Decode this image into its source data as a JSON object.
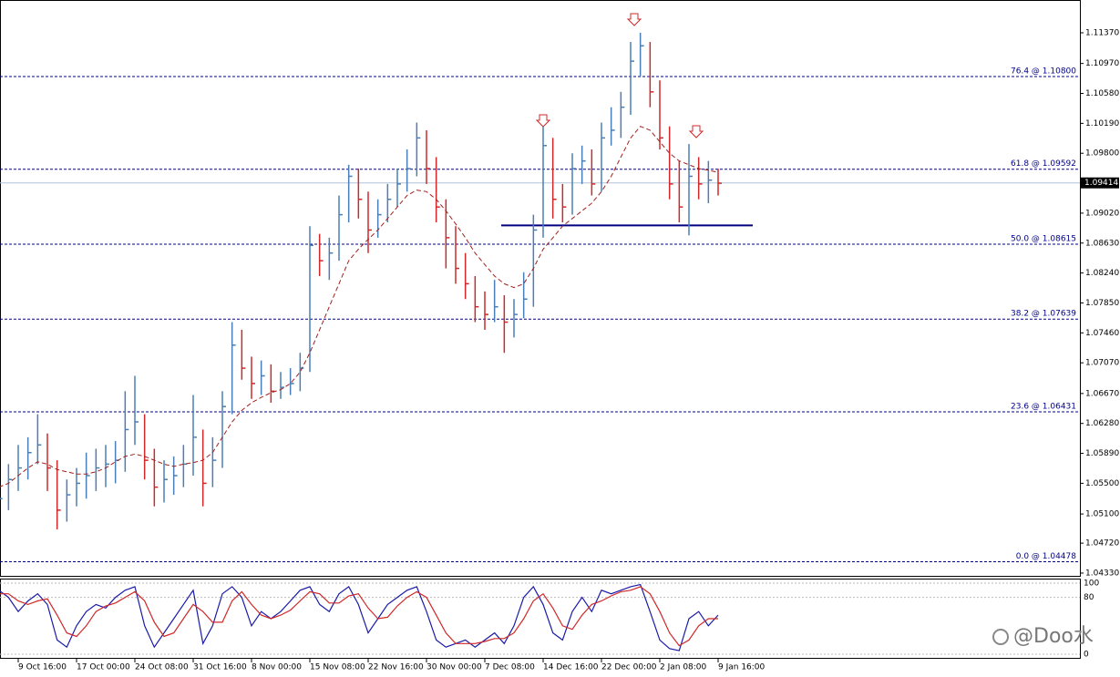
{
  "chart_data": {
    "type": "ohlc",
    "categories": [
      null,
      null,
      "9 Oct 16:00",
      null,
      null,
      null,
      null,
      null,
      "17 Oct 00:00",
      null,
      null,
      null,
      null,
      null,
      "24 Oct 08:00",
      null,
      null,
      null,
      null,
      null,
      "31 Oct 16:00",
      null,
      null,
      null,
      null,
      null,
      "8 Nov 00:00",
      null,
      null,
      null,
      null,
      null,
      "15 Nov 08:00",
      null,
      null,
      null,
      null,
      null,
      "22 Nov 16:00",
      null,
      null,
      null,
      null,
      null,
      "30 Nov 00:00",
      null,
      null,
      null,
      null,
      null,
      "7 Dec 08:00",
      null,
      null,
      null,
      null,
      null,
      "14 Dec 16:00",
      null,
      null,
      null,
      null,
      null,
      "22 Dec 00:00",
      null,
      null,
      null,
      null,
      null,
      "2 Jan 08:00",
      null,
      null,
      null,
      null,
      null,
      "9 Jan 16:00"
    ],
    "high": [
      1.056,
      1.0575,
      1.06,
      1.061,
      1.064,
      1.0615,
      1.058,
      1.0555,
      1.057,
      1.059,
      1.0595,
      1.06,
      1.0605,
      1.067,
      1.069,
      1.064,
      1.0595,
      1.058,
      1.0585,
      1.06,
      1.0665,
      1.062,
      1.061,
      1.067,
      1.076,
      1.075,
      1.0715,
      1.071,
      1.0705,
      1.0695,
      1.07,
      1.072,
      1.0885,
      1.0875,
      1.087,
      1.0925,
      1.0965,
      1.096,
      1.093,
      1.092,
      1.094,
      1.096,
      1.0985,
      1.102,
      1.101,
      1.0975,
      1.092,
      1.0885,
      1.085,
      1.082,
      1.08,
      1.0815,
      1.0795,
      1.079,
      1.0825,
      1.09,
      1.1015,
      1.1,
      1.094,
      1.098,
      1.099,
      1.0985,
      1.102,
      1.104,
      1.106,
      1.1125,
      1.1137,
      1.1125,
      1.1075,
      1.1015,
      1.097,
      1.0992,
      1.0975,
      1.097,
      1.096
    ],
    "low": [
      1.048,
      1.0515,
      1.054,
      1.0555,
      1.0575,
      1.054,
      1.049,
      1.05,
      1.052,
      1.053,
      1.054,
      1.0545,
      1.055,
      1.0565,
      1.06,
      1.0555,
      1.052,
      1.0525,
      1.0535,
      1.0545,
      1.056,
      1.052,
      1.0545,
      1.057,
      1.064,
      1.0685,
      1.066,
      1.0665,
      1.0655,
      1.066,
      1.0665,
      1.067,
      1.0695,
      1.082,
      1.0815,
      1.084,
      1.089,
      1.0895,
      1.085,
      1.087,
      1.089,
      1.091,
      1.093,
      1.095,
      1.094,
      1.089,
      1.083,
      1.081,
      1.079,
      1.076,
      1.075,
      1.076,
      1.072,
      1.074,
      1.0765,
      1.078,
      1.087,
      1.0895,
      1.089,
      1.09,
      1.094,
      1.0925,
      1.093,
      1.099,
      1.1,
      1.103,
      1.108,
      1.104,
      1.0985,
      1.092,
      1.089,
      1.0873,
      1.092,
      1.0915,
      1.0925
    ],
    "close": [
      1.053,
      1.0555,
      1.057,
      1.059,
      1.06,
      1.057,
      1.0515,
      1.0535,
      1.055,
      1.056,
      1.057,
      1.0575,
      1.058,
      1.062,
      1.063,
      1.058,
      1.0545,
      1.0555,
      1.056,
      1.0575,
      1.061,
      1.055,
      1.058,
      1.065,
      1.073,
      1.07,
      1.068,
      1.069,
      1.067,
      1.0675,
      1.068,
      1.07,
      1.086,
      1.084,
      1.085,
      1.09,
      1.095,
      1.092,
      1.088,
      1.09,
      1.092,
      1.094,
      1.096,
      1.1,
      1.096,
      1.091,
      1.087,
      1.083,
      1.081,
      1.078,
      1.077,
      1.078,
      1.076,
      1.077,
      1.079,
      1.088,
      1.099,
      1.092,
      1.091,
      1.096,
      1.097,
      1.094,
      1.1,
      1.101,
      1.104,
      1.11,
      1.112,
      1.106,
      1.1,
      1.094,
      1.091,
      1.095,
      1.094,
      1.0945,
      1.0941
    ],
    "up_color": "#4a7fb5",
    "down_color": "#d02828",
    "ma": {
      "color": "#a0201c",
      "values": [
        1.0545,
        1.055,
        1.056,
        1.057,
        1.0578,
        1.0575,
        1.0568,
        1.0565,
        1.0562,
        1.0562,
        1.0565,
        1.057,
        1.0578,
        1.0585,
        1.0588,
        1.0585,
        1.058,
        1.0575,
        1.0572,
        1.0575,
        1.0577,
        1.058,
        1.059,
        1.061,
        1.063,
        1.0645,
        1.0655,
        1.0662,
        1.0668,
        1.0672,
        1.068,
        1.0695,
        1.072,
        1.075,
        1.078,
        1.081,
        1.084,
        1.0855,
        1.0868,
        1.088,
        1.0895,
        1.091,
        1.0925,
        1.0932,
        1.093,
        1.092,
        1.0905,
        1.0888,
        1.087,
        1.085,
        1.0835,
        1.082,
        1.081,
        1.0805,
        1.081,
        1.083,
        1.0855,
        1.087,
        1.0885,
        1.0895,
        1.0905,
        1.0915,
        1.093,
        1.095,
        1.0975,
        1.1,
        1.1015,
        1.101,
        1.0995,
        1.098,
        1.097,
        1.0965,
        1.096,
        1.0958,
        1.0955
      ]
    },
    "ylim": [
      1.04294,
      1.11797
    ],
    "yticks": [
      {
        "value": 1.1137,
        "label": "1.11370"
      },
      {
        "value": 1.1097,
        "label": "1.10970"
      },
      {
        "value": 1.1058,
        "label": "1.10580"
      },
      {
        "value": 1.1019,
        "label": "1.10190"
      },
      {
        "value": 1.098,
        "label": "1.09800"
      },
      {
        "value": 1.0902,
        "label": "1.09020"
      },
      {
        "value": 1.0863,
        "label": "1.08630"
      },
      {
        "value": 1.0824,
        "label": "1.08240"
      },
      {
        "value": 1.0785,
        "label": "1.07850"
      },
      {
        "value": 1.0746,
        "label": "1.07460"
      },
      {
        "value": 1.0707,
        "label": "1.07070"
      },
      {
        "value": 1.0667,
        "label": "1.06670"
      },
      {
        "value": 1.0628,
        "label": "1.06280"
      },
      {
        "value": 1.0589,
        "label": "1.05890"
      },
      {
        "value": 1.055,
        "label": "1.05500"
      },
      {
        "value": 1.051,
        "label": "1.05100"
      },
      {
        "value": 1.0472,
        "label": "1.04720"
      },
      {
        "value": 1.0433,
        "label": "1.04330"
      }
    ],
    "levels": [
      {
        "value": 1.108,
        "label": "76.4 @ 1.10800"
      },
      {
        "value": 1.09592,
        "label": "61.8 @ 1.09592"
      },
      {
        "value": 1.08615,
        "label": "50.0 @ 1.08615"
      },
      {
        "value": 1.07639,
        "label": "38.2 @ 1.07639"
      },
      {
        "value": 1.06431,
        "label": "23.6 @ 1.06431"
      },
      {
        "value": 1.04478,
        "label": "0.0 @ 1.04478"
      }
    ],
    "level_color": "#00008b",
    "support": {
      "value": 1.0886,
      "color": "#000080"
    },
    "last_price": {
      "value": 1.09414,
      "label": "1.09414"
    },
    "stochastic": {
      "ylim": [
        0,
        100
      ],
      "yticks": [
        0,
        80,
        100
      ],
      "series": [
        {
          "color": "#1a1aa8",
          "values": [
            90,
            80,
            60,
            75,
            85,
            70,
            20,
            10,
            40,
            60,
            70,
            65,
            80,
            90,
            95,
            40,
            10,
            30,
            50,
            70,
            90,
            15,
            40,
            85,
            95,
            80,
            40,
            60,
            50,
            60,
            75,
            90,
            95,
            70,
            60,
            85,
            95,
            70,
            30,
            50,
            70,
            80,
            90,
            95,
            60,
            20,
            10,
            15,
            20,
            10,
            20,
            30,
            15,
            40,
            80,
            95,
            70,
            30,
            20,
            60,
            80,
            60,
            90,
            85,
            90,
            95,
            98,
            60,
            20,
            8,
            5,
            50,
            60,
            40,
            55
          ]
        },
        {
          "color": "#d02828",
          "values": [
            85,
            85,
            75,
            70,
            75,
            78,
            55,
            30,
            25,
            40,
            60,
            68,
            72,
            80,
            88,
            75,
            45,
            25,
            30,
            50,
            70,
            60,
            45,
            45,
            75,
            88,
            70,
            55,
            50,
            55,
            62,
            75,
            88,
            85,
            72,
            72,
            82,
            85,
            65,
            50,
            52,
            68,
            80,
            88,
            80,
            55,
            30,
            15,
            15,
            15,
            18,
            22,
            22,
            30,
            50,
            75,
            85,
            65,
            40,
            35,
            55,
            70,
            75,
            82,
            88,
            90,
            95,
            85,
            60,
            30,
            12,
            20,
            40,
            50,
            50
          ]
        }
      ]
    },
    "watermark": "@Doo水"
  }
}
